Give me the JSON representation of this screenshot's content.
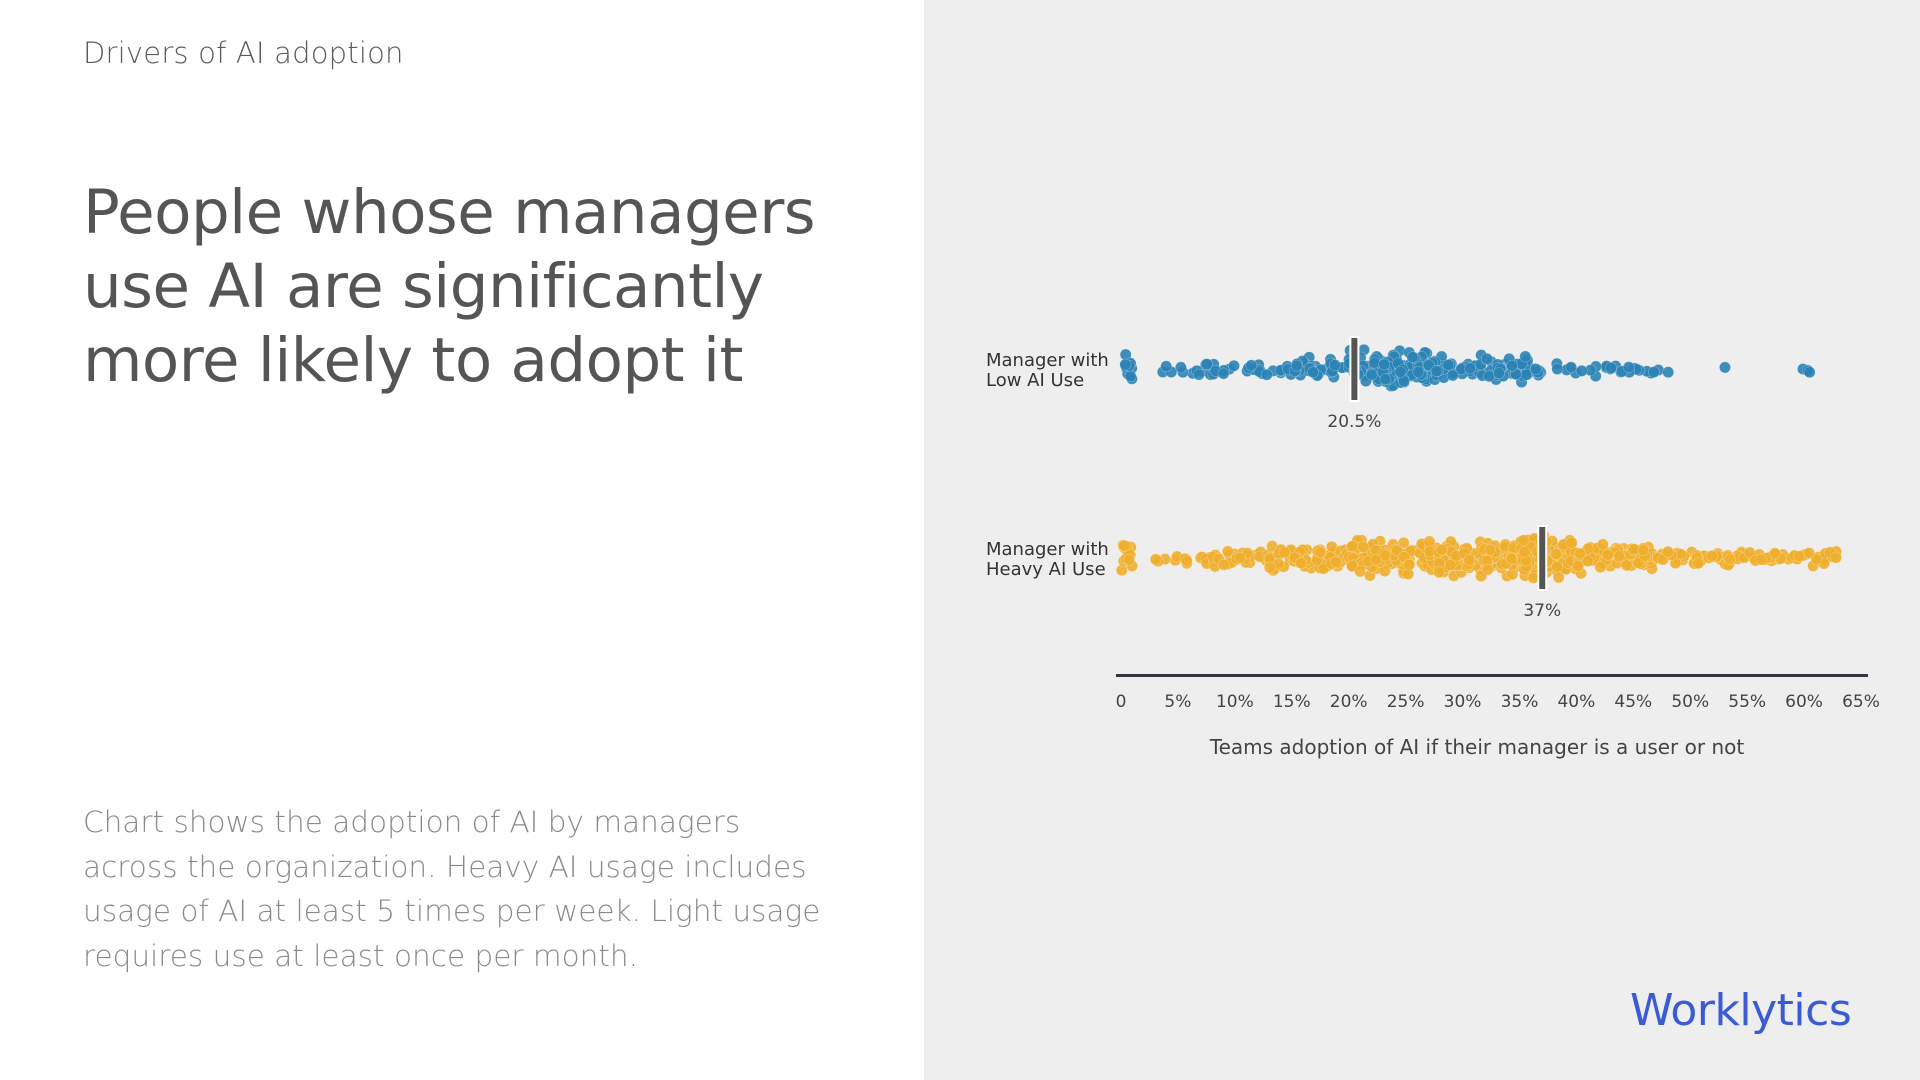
{
  "eyebrow": "Drivers of AI adoption",
  "headline": "People whose managers use AI are significantly more likely to adopt it",
  "description": "Chart shows the adoption of AI by managers across the organization. Heavy AI usage includes usage of AI at least 5 times per week. Light usage requires use at least once per month.",
  "logo_text": "Worklytics",
  "colors": {
    "left_background": "#ffffff",
    "right_background": "#eeeeee",
    "low_ai_points": "#2a82b5",
    "heavy_ai_points": "#eeae2c",
    "median_marker": "#555555",
    "axis_line": "#333344",
    "logo": "#3b5bd6"
  },
  "chart_data": {
    "type": "scatter",
    "subtype": "beeswarm",
    "title": "",
    "xlabel": "Teams adoption of AI if their manager is a user or not",
    "ylabel": "",
    "xlim": [
      0,
      65
    ],
    "x_ticks": [
      "0",
      "5%",
      "10%",
      "15%",
      "20%",
      "25%",
      "30%",
      "35%",
      "40%",
      "45%",
      "50%",
      "55%",
      "60%",
      "65%"
    ],
    "x_tick_values": [
      0,
      5,
      10,
      15,
      20,
      25,
      30,
      35,
      40,
      45,
      50,
      55,
      60,
      65
    ],
    "grid": false,
    "legend": "none",
    "series": [
      {
        "name": "Manager with Low AI Use",
        "label_lines": [
          "Manager with",
          "Low AI Use"
        ],
        "color": "#2a82b5",
        "median": 20.5,
        "median_label": "20.5%",
        "approx_point_count": 360,
        "density": [
          {
            "range": [
              0,
              1
            ],
            "weight": 12
          },
          {
            "range": [
              3.5,
              5
            ],
            "weight": 3
          },
          {
            "range": [
              5,
              10
            ],
            "weight": 16
          },
          {
            "range": [
              11,
              14.5
            ],
            "weight": 14
          },
          {
            "range": [
              14.5,
              20
            ],
            "weight": 38
          },
          {
            "range": [
              20,
              27
            ],
            "weight": 110
          },
          {
            "range": [
              27,
              33
            ],
            "weight": 55
          },
          {
            "range": [
              33,
              37
            ],
            "weight": 35
          },
          {
            "range": [
              38,
              43
            ],
            "weight": 14
          },
          {
            "range": [
              43,
              50
            ],
            "weight": 14
          },
          {
            "range": [
              53,
              53.5
            ],
            "weight": 1
          },
          {
            "range": [
              59.5,
              60.5
            ],
            "weight": 3
          }
        ]
      },
      {
        "name": "Manager with Heavy AI Use",
        "label_lines": [
          "Manager with",
          "Heavy AI Use"
        ],
        "color": "#eeae2c",
        "median": 37,
        "median_label": "37%",
        "approx_point_count": 620,
        "density": [
          {
            "range": [
              0,
              1
            ],
            "weight": 14
          },
          {
            "range": [
              3,
              8
            ],
            "weight": 14
          },
          {
            "range": [
              8,
              13
            ],
            "weight": 28
          },
          {
            "range": [
              13,
              20
            ],
            "weight": 70
          },
          {
            "range": [
              20,
              27
            ],
            "weight": 110
          },
          {
            "range": [
              27,
              35
            ],
            "weight": 115
          },
          {
            "range": [
              35,
              40
            ],
            "weight": 100
          },
          {
            "range": [
              40,
              47
            ],
            "weight": 70
          },
          {
            "range": [
              47,
              55
            ],
            "weight": 50
          },
          {
            "range": [
              55,
              63
            ],
            "weight": 35
          },
          {
            "range": [
              56,
              60
            ],
            "weight": 2
          }
        ]
      }
    ]
  }
}
